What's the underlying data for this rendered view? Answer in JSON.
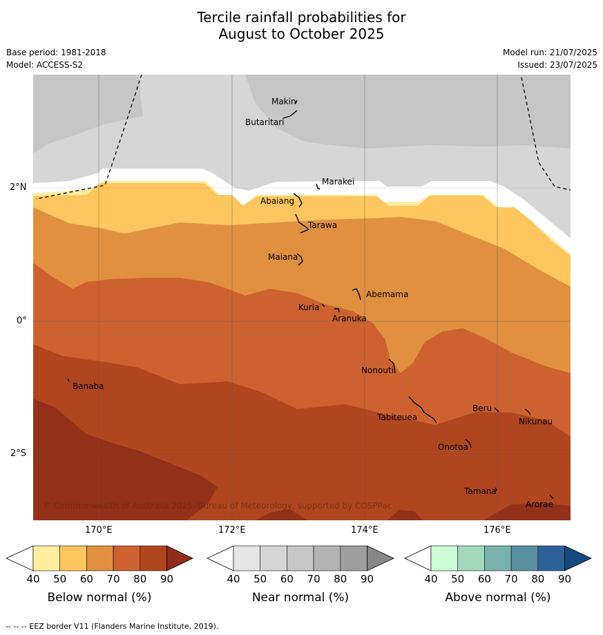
{
  "title_line1": "Tercile rainfall probabilities for",
  "title_line2": "August to October 2025",
  "base_period": "Base period: 1981-2018",
  "model": "Model: ACCESS-S2",
  "model_run": "Model run: 21/07/2025",
  "issued": "Issued: 23/07/2025",
  "copyright": "© Commonwealth of Australia 2025, Bureau of Meteorology, supported by COSPPac",
  "footer": "-- -- -- EEZ border V11 (Flanders Marine Institute, 2019).",
  "lat_labels": [
    "2°N",
    "0°",
    "2°S"
  ],
  "lon_labels": [
    "170°E",
    "172°E",
    "174°E",
    "176°E"
  ],
  "islands": [
    "Makin",
    "Butaritari",
    "Marakei",
    "Abaiang",
    "Tarawa",
    "Maiana",
    "Abemama",
    "Kuria",
    "Aranuka",
    "Nonouti",
    "Banaba",
    "Tabiteuea",
    "Beru",
    "Nikunau",
    "Onotoa",
    "Tamana",
    "Arorae"
  ],
  "colorbars": [
    {
      "label": "Below normal (%)",
      "ticks": [
        "40",
        "50",
        "60",
        "70",
        "80",
        "90"
      ],
      "colors": [
        "#ffffff",
        "#ffeda0",
        "#fec65f",
        "#e0913f",
        "#cd6230",
        "#b0461f",
        "#8f2d1a"
      ]
    },
    {
      "label": "Near normal (%)",
      "ticks": [
        "40",
        "50",
        "60",
        "70",
        "80",
        "90"
      ],
      "colors": [
        "#ffffff",
        "#e6e6e6",
        "#d6d6d6",
        "#c6c6c6",
        "#b3b3b3",
        "#9e9e9e",
        "#878787"
      ]
    },
    {
      "label": "Above normal (%)",
      "ticks": [
        "40",
        "50",
        "60",
        "70",
        "80",
        "90"
      ],
      "colors": [
        "#ffffff",
        "#cdfbd5",
        "#a2d8bc",
        "#79b3ac",
        "#5a8fa0",
        "#2f6199",
        "#154a80"
      ]
    }
  ]
}
